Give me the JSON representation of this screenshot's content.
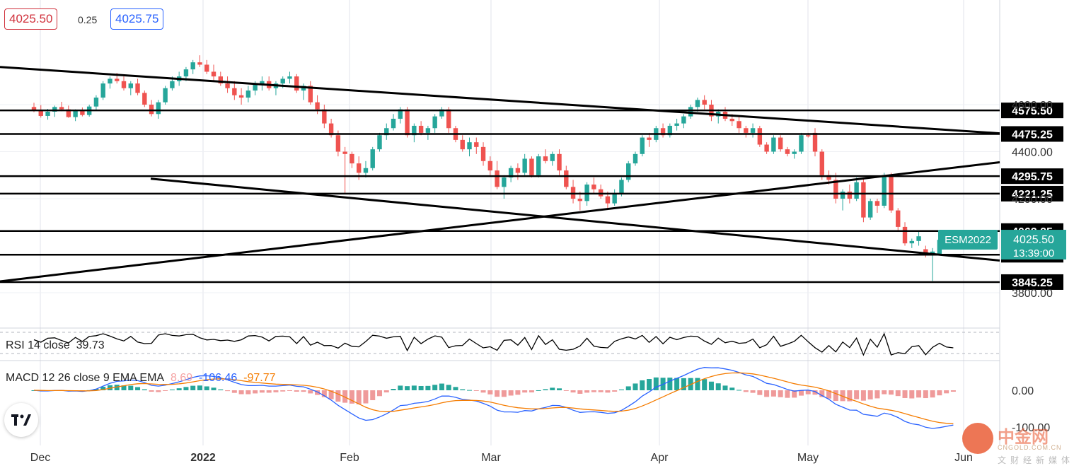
{
  "quote": {
    "bid": "4025.50",
    "spread": "0.25",
    "ask": "4025.75"
  },
  "symbol": {
    "name": "ESM2022",
    "last": "4025.50",
    "countdown": "13:39:00"
  },
  "indicators": {
    "rsi_name": "RSI 14 close",
    "rsi_value": "39.73",
    "macd_name": "MACD 12 26 close 9 EMA EMA",
    "macd_hist": "8.69",
    "macd_line": "-106.46",
    "macd_signal": "-97.77"
  },
  "watermark": {
    "cn": "中金网",
    "site": "CNGOLD.COM.CN",
    "sub": "文财经新媒体"
  },
  "colors": {
    "up": "#26a69a",
    "down": "#ef5350",
    "macd": "#2962ff",
    "signal": "#f57c00",
    "bid": "#d0313c",
    "ask": "#2962ff",
    "level": "#000000"
  },
  "chart_data": {
    "type": "candlestick",
    "symbol": "ESM2022",
    "price_axis": {
      "ticks": [
        4600.0,
        4400.0,
        4200.0,
        3800.0
      ],
      "ylim": [
        3760,
        4655
      ]
    },
    "time_axis": [
      "Dec",
      "2022",
      "Feb",
      "Mar",
      "Apr",
      "May",
      "Jun"
    ],
    "horizontal_levels": [
      4575.5,
      4475.25,
      4295.75,
      4221.25,
      4062.25,
      3961.5,
      3845.25
    ],
    "last_price": 4025.5,
    "candles": [
      [
        4590,
        4608,
        4568,
        4577
      ],
      [
        4577,
        4598,
        4545,
        4552
      ],
      [
        4552,
        4582,
        4536,
        4570
      ],
      [
        4570,
        4596,
        4548,
        4590
      ],
      [
        4590,
        4612,
        4572,
        4580
      ],
      [
        4580,
        4596,
        4544,
        4547
      ],
      [
        4547,
        4580,
        4530,
        4574
      ],
      [
        4574,
        4588,
        4550,
        4556
      ],
      [
        4556,
        4600,
        4549,
        4592
      ],
      [
        4592,
        4640,
        4578,
        4630
      ],
      [
        4630,
        4700,
        4620,
        4690
      ],
      [
        4690,
        4720,
        4668,
        4710
      ],
      [
        4710,
        4735,
        4690,
        4700
      ],
      [
        4700,
        4720,
        4660,
        4670
      ],
      [
        4670,
        4700,
        4640,
        4690
      ],
      [
        4690,
        4710,
        4640,
        4650
      ],
      [
        4650,
        4660,
        4590,
        4600
      ],
      [
        4600,
        4620,
        4550,
        4560
      ],
      [
        4560,
        4620,
        4540,
        4610
      ],
      [
        4610,
        4680,
        4600,
        4670
      ],
      [
        4670,
        4720,
        4660,
        4700
      ],
      [
        4700,
        4740,
        4680,
        4720
      ],
      [
        4720,
        4760,
        4700,
        4750
      ],
      [
        4750,
        4790,
        4730,
        4780
      ],
      [
        4780,
        4810,
        4760,
        4770
      ],
      [
        4770,
        4790,
        4730,
        4740
      ],
      [
        4740,
        4770,
        4700,
        4720
      ],
      [
        4720,
        4740,
        4680,
        4690
      ],
      [
        4690,
        4720,
        4650,
        4670
      ],
      [
        4670,
        4700,
        4620,
        4640
      ],
      [
        4640,
        4670,
        4600,
        4630
      ],
      [
        4630,
        4680,
        4610,
        4660
      ],
      [
        4660,
        4700,
        4640,
        4690
      ],
      [
        4690,
        4720,
        4660,
        4700
      ],
      [
        4700,
        4720,
        4660,
        4670
      ],
      [
        4670,
        4700,
        4640,
        4690
      ],
      [
        4690,
        4720,
        4670,
        4710
      ],
      [
        4710,
        4740,
        4690,
        4720
      ],
      [
        4720,
        4730,
        4650,
        4660
      ],
      [
        4660,
        4690,
        4620,
        4680
      ],
      [
        4680,
        4700,
        4600,
        4610
      ],
      [
        4610,
        4640,
        4560,
        4580
      ],
      [
        4580,
        4600,
        4500,
        4520
      ],
      [
        4520,
        4540,
        4460,
        4470
      ],
      [
        4470,
        4490,
        4380,
        4400
      ],
      [
        4400,
        4420,
        4220,
        4390
      ],
      [
        4390,
        4400,
        4330,
        4350
      ],
      [
        4350,
        4380,
        4280,
        4310
      ],
      [
        4310,
        4360,
        4290,
        4330
      ],
      [
        4330,
        4420,
        4320,
        4410
      ],
      [
        4410,
        4480,
        4400,
        4470
      ],
      [
        4470,
        4520,
        4450,
        4500
      ],
      [
        4500,
        4560,
        4490,
        4540
      ],
      [
        4540,
        4590,
        4520,
        4580
      ],
      [
        4580,
        4590,
        4460,
        4470
      ],
      [
        4470,
        4520,
        4440,
        4510
      ],
      [
        4510,
        4530,
        4470,
        4480
      ],
      [
        4480,
        4510,
        4450,
        4500
      ],
      [
        4500,
        4560,
        4480,
        4550
      ],
      [
        4550,
        4590,
        4540,
        4580
      ],
      [
        4580,
        4590,
        4480,
        4500
      ],
      [
        4500,
        4510,
        4440,
        4450
      ],
      [
        4450,
        4470,
        4400,
        4410
      ],
      [
        4410,
        4460,
        4380,
        4440
      ],
      [
        4440,
        4460,
        4390,
        4420
      ],
      [
        4420,
        4440,
        4340,
        4360
      ],
      [
        4360,
        4380,
        4300,
        4320
      ],
      [
        4320,
        4360,
        4240,
        4250
      ],
      [
        4250,
        4300,
        4200,
        4290
      ],
      [
        4290,
        4340,
        4270,
        4330
      ],
      [
        4330,
        4350,
        4280,
        4310
      ],
      [
        4310,
        4390,
        4300,
        4370
      ],
      [
        4370,
        4380,
        4290,
        4300
      ],
      [
        4300,
        4390,
        4290,
        4380
      ],
      [
        4380,
        4410,
        4350,
        4360
      ],
      [
        4360,
        4400,
        4340,
        4390
      ],
      [
        4390,
        4410,
        4300,
        4320
      ],
      [
        4320,
        4340,
        4240,
        4250
      ],
      [
        4250,
        4280,
        4180,
        4200
      ],
      [
        4200,
        4230,
        4150,
        4190
      ],
      [
        4190,
        4270,
        4170,
        4260
      ],
      [
        4260,
        4290,
        4220,
        4240
      ],
      [
        4240,
        4260,
        4200,
        4210
      ],
      [
        4210,
        4230,
        4160,
        4180
      ],
      [
        4180,
        4240,
        4170,
        4220
      ],
      [
        4220,
        4290,
        4210,
        4280
      ],
      [
        4280,
        4360,
        4270,
        4350
      ],
      [
        4350,
        4400,
        4340,
        4390
      ],
      [
        4390,
        4470,
        4380,
        4460
      ],
      [
        4460,
        4480,
        4420,
        4450
      ],
      [
        4450,
        4510,
        4440,
        4500
      ],
      [
        4500,
        4520,
        4460,
        4470
      ],
      [
        4470,
        4520,
        4460,
        4510
      ],
      [
        4510,
        4540,
        4490,
        4520
      ],
      [
        4520,
        4560,
        4500,
        4550
      ],
      [
        4550,
        4600,
        4540,
        4590
      ],
      [
        4590,
        4630,
        4570,
        4620
      ],
      [
        4620,
        4640,
        4580,
        4600
      ],
      [
        4600,
        4620,
        4530,
        4550
      ],
      [
        4550,
        4580,
        4520,
        4570
      ],
      [
        4570,
        4590,
        4530,
        4540
      ],
      [
        4540,
        4560,
        4510,
        4530
      ],
      [
        4530,
        4550,
        4480,
        4500
      ],
      [
        4500,
        4510,
        4460,
        4480
      ],
      [
        4480,
        4520,
        4460,
        4500
      ],
      [
        4500,
        4510,
        4420,
        4430
      ],
      [
        4430,
        4440,
        4390,
        4400
      ],
      [
        4400,
        4470,
        4390,
        4460
      ],
      [
        4460,
        4470,
        4400,
        4410
      ],
      [
        4410,
        4420,
        4380,
        4390
      ],
      [
        4390,
        4410,
        4370,
        4400
      ],
      [
        4400,
        4480,
        4390,
        4470
      ],
      [
        4470,
        4480,
        4460,
        4465
      ],
      [
        4480,
        4500,
        4380,
        4400
      ],
      [
        4400,
        4410,
        4280,
        4300
      ],
      [
        4300,
        4320,
        4260,
        4280
      ],
      [
        4280,
        4310,
        4180,
        4200
      ],
      [
        4200,
        4240,
        4150,
        4230
      ],
      [
        4230,
        4260,
        4180,
        4200
      ],
      [
        4200,
        4290,
        4190,
        4270
      ],
      [
        4270,
        4290,
        4100,
        4120
      ],
      [
        4120,
        4200,
        4110,
        4190
      ],
      [
        4190,
        4200,
        4140,
        4170
      ],
      [
        4170,
        4310,
        4160,
        4300
      ],
      [
        4300,
        4310,
        4140,
        4150
      ],
      [
        4150,
        4160,
        4060,
        4080
      ],
      [
        4080,
        4100,
        4000,
        4010
      ],
      [
        4010,
        4030,
        3990,
        4020
      ],
      [
        4020,
        4060,
        4000,
        4040
      ],
      [
        3985,
        4000,
        3950,
        3965
      ],
      [
        3965,
        3990,
        3850,
        3975
      ],
      [
        3965,
        4040,
        3960,
        4025
      ],
      [
        4010,
        4040,
        4000,
        4030
      ],
      [
        4010,
        4035,
        4005,
        4025.5
      ]
    ],
    "trendlines": [
      {
        "from": [
          "Nov",
          4760
        ],
        "to": [
          "Jun",
          4478
        ]
      },
      {
        "from": [
          "Jan",
          4285
        ],
        "to": [
          "Jun",
          3937
        ]
      },
      {
        "from": [
          "Nov",
          3848
        ],
        "to": [
          "Jun",
          4355
        ]
      }
    ],
    "rsi": {
      "label": "RSI 14 close",
      "last": 39.73
    },
    "macd": {
      "label": "MACD 12 26 close 9 EMA EMA",
      "hist": 8.69,
      "macd": -106.46,
      "signal": -97.77,
      "axis_ticks": [
        0.0,
        -100.0
      ]
    }
  }
}
